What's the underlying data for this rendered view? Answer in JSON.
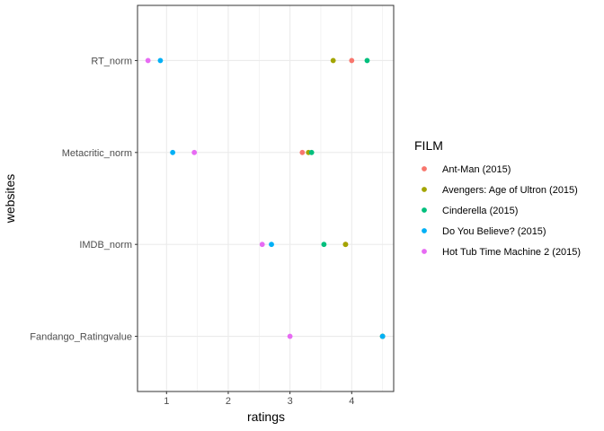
{
  "chart_data": {
    "type": "scatter",
    "title": "",
    "xlabel": "ratings",
    "ylabel": "websites",
    "xlim": [
      0.53,
      4.68
    ],
    "x_ticks": [
      "1",
      "2",
      "3",
      "4"
    ],
    "categories": [
      "Fandango_Ratingvalue",
      "IMDB_norm",
      "Metacritic_norm",
      "RT_norm"
    ],
    "grid": true,
    "legend_title": "FILM",
    "legend_position": "right",
    "series": [
      {
        "name": "Ant-Man (2015)",
        "color": "#F8766D",
        "values": [
          4.5,
          3.9,
          3.2,
          4.0
        ]
      },
      {
        "name": "Avengers: Age of Ultron (2015)",
        "color": "#A3A500",
        "values": [
          4.5,
          3.9,
          3.3,
          3.7
        ]
      },
      {
        "name": "Cinderella (2015)",
        "color": "#00BF7D",
        "values": [
          4.5,
          3.55,
          3.35,
          4.25
        ]
      },
      {
        "name": "Do You Believe? (2015)",
        "color": "#00B0F6",
        "values": [
          4.5,
          2.7,
          1.1,
          0.9
        ]
      },
      {
        "name": "Hot Tub Time Machine 2 (2015)",
        "color": "#E76BF3",
        "values": [
          3.0,
          2.55,
          1.45,
          0.7
        ]
      }
    ]
  }
}
